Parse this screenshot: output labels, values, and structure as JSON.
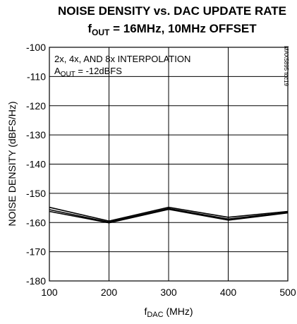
{
  "chart_data": {
    "type": "line",
    "title_line1": "NOISE DENSITY vs. DAC UPDATE RATE",
    "title_line2_main": "f",
    "title_line2_sub": "OUT",
    "title_line2_rest": " = 16MHz, 10MHz OFFSET",
    "xlabel_main": "f",
    "xlabel_sub": "DAC",
    "xlabel_rest": " (MHz)",
    "ylabel": "NOISE DENSITY (dBFS/Hz)",
    "xlim": [
      100,
      500
    ],
    "ylim": [
      -180,
      -100
    ],
    "x_ticks": [
      100,
      200,
      300,
      400,
      500
    ],
    "y_ticks": [
      -100,
      -110,
      -120,
      -130,
      -140,
      -150,
      -160,
      -170,
      -180
    ],
    "annotation_line1": "2x, 4x, AND 8x INTERPOLATION",
    "annotation_line2_main": "A",
    "annotation_line2_sub": "OUT",
    "annotation_line2_rest": " = -12dBFS",
    "side_label": "MAX5895 toc19",
    "grid": true,
    "series": [
      {
        "x": [
          100,
          200,
          300,
          400,
          500
        ],
        "values": [
          -154.8,
          -159.5,
          -154.8,
          -158.2,
          -156.2
        ]
      },
      {
        "x": [
          100,
          200,
          300,
          400,
          500
        ],
        "values": [
          -155.6,
          -159.9,
          -155.2,
          -158.8,
          -156.5
        ]
      },
      {
        "x": [
          100,
          200,
          300,
          400,
          500
        ],
        "values": [
          -156.2,
          -160.1,
          -155.5,
          -159.2,
          -156.7
        ]
      }
    ]
  }
}
